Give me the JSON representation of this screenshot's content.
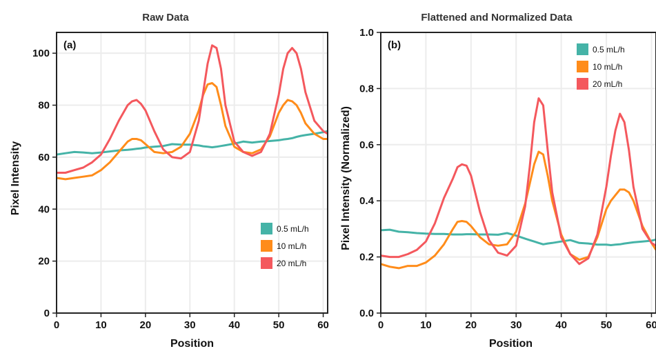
{
  "chart_data": [
    {
      "type": "line",
      "title": "Raw Data",
      "panel_label": "(a)",
      "xlabel": "Position",
      "ylabel": "Pixel Intensity",
      "xlim": [
        0,
        61
      ],
      "ylim": [
        0,
        108
      ],
      "xticks": [
        0,
        10,
        20,
        30,
        40,
        50,
        60
      ],
      "yticks": [
        0,
        20,
        40,
        60,
        80,
        100
      ],
      "ytick_labels": [
        "0",
        "20",
        "40",
        "60",
        "80",
        "100"
      ],
      "grid": true,
      "legend_position": "bottom-right",
      "x": [
        0,
        2,
        4,
        6,
        8,
        10,
        12,
        14,
        16,
        17,
        18,
        19,
        20,
        22,
        24,
        26,
        28,
        30,
        32,
        33,
        34,
        35,
        36,
        37,
        38,
        40,
        42,
        44,
        46,
        48,
        50,
        51,
        52,
        53,
        54,
        55,
        56,
        58,
        60,
        61
      ],
      "series": [
        {
          "name": "0.5 mL/h",
          "color": "#45b3a7",
          "values": [
            61,
            61.5,
            62,
            61.8,
            61.5,
            61.8,
            62.2,
            62.6,
            62.8,
            63,
            63.2,
            63.4,
            63.7,
            64,
            64.3,
            65,
            64.8,
            64.8,
            64.5,
            64.2,
            64,
            63.8,
            64,
            64.3,
            64.6,
            65.2,
            66,
            65.6,
            66,
            66.2,
            66.5,
            66.8,
            67,
            67.3,
            67.8,
            68.2,
            68.5,
            69,
            69.6,
            70
          ]
        },
        {
          "name": "10 mL/h",
          "color": "#ff8c1a",
          "values": [
            52,
            51.5,
            52,
            52.5,
            53,
            55,
            58,
            62,
            66,
            67,
            67,
            66.5,
            65,
            62,
            61.5,
            62,
            64,
            69,
            78,
            84,
            88,
            88.5,
            87,
            80,
            72,
            64,
            62,
            61.5,
            63,
            68,
            77,
            80,
            82,
            81.5,
            80,
            77,
            73,
            69,
            67,
            67
          ]
        },
        {
          "name": "20 mL/h",
          "color": "#f4585d",
          "values": [
            54,
            54,
            55,
            56,
            58,
            61,
            67,
            74,
            80,
            81.5,
            82,
            80.5,
            78,
            70,
            63,
            60,
            59.5,
            62,
            74,
            85,
            96,
            103,
            102,
            94,
            80,
            66,
            62,
            60.5,
            62,
            69,
            84,
            94,
            100,
            102,
            100,
            94,
            85,
            74,
            70,
            69
          ]
        }
      ]
    },
    {
      "type": "line",
      "title": "Flattened and Normalized Data",
      "panel_label": "(b)",
      "xlabel": "Position",
      "ylabel": "Pixel Intensity (Normalized)",
      "xlim": [
        0,
        61
      ],
      "ylim": [
        0,
        1.0
      ],
      "xticks": [
        0,
        10,
        20,
        30,
        40,
        50,
        60
      ],
      "yticks": [
        0,
        0.2,
        0.4,
        0.6,
        0.8,
        1.0
      ],
      "ytick_labels": [
        "0.0",
        "0.2",
        "0.4",
        "0.6",
        "0.8",
        "1.0"
      ],
      "grid": true,
      "legend_position": "top-right",
      "x": [
        0,
        2,
        4,
        6,
        8,
        10,
        12,
        14,
        16,
        17,
        18,
        19,
        20,
        22,
        24,
        26,
        28,
        30,
        32,
        33,
        34,
        35,
        36,
        37,
        38,
        40,
        42,
        44,
        46,
        48,
        50,
        51,
        52,
        53,
        54,
        55,
        56,
        58,
        60,
        61
      ],
      "series": [
        {
          "name": "0.5 mL/h",
          "color": "#45b3a7",
          "values": [
            0.295,
            0.297,
            0.29,
            0.288,
            0.285,
            0.283,
            0.282,
            0.282,
            0.28,
            0.28,
            0.28,
            0.281,
            0.281,
            0.28,
            0.28,
            0.279,
            0.285,
            0.276,
            0.265,
            0.26,
            0.255,
            0.25,
            0.245,
            0.248,
            0.25,
            0.255,
            0.26,
            0.25,
            0.248,
            0.244,
            0.244,
            0.242,
            0.244,
            0.245,
            0.248,
            0.25,
            0.252,
            0.255,
            0.258,
            0.262
          ]
        },
        {
          "name": "10 mL/h",
          "color": "#ff8c1a",
          "values": [
            0.175,
            0.165,
            0.16,
            0.168,
            0.168,
            0.18,
            0.205,
            0.245,
            0.3,
            0.325,
            0.328,
            0.325,
            0.31,
            0.27,
            0.245,
            0.24,
            0.245,
            0.29,
            0.39,
            0.46,
            0.53,
            0.575,
            0.565,
            0.49,
            0.4,
            0.28,
            0.21,
            0.19,
            0.2,
            0.27,
            0.37,
            0.4,
            0.42,
            0.44,
            0.44,
            0.43,
            0.4,
            0.31,
            0.25,
            0.225
          ]
        },
        {
          "name": "20 mL/h",
          "color": "#f4585d",
          "values": [
            0.205,
            0.2,
            0.2,
            0.21,
            0.225,
            0.255,
            0.32,
            0.41,
            0.48,
            0.52,
            0.53,
            0.525,
            0.49,
            0.36,
            0.26,
            0.215,
            0.205,
            0.24,
            0.38,
            0.52,
            0.68,
            0.765,
            0.74,
            0.58,
            0.43,
            0.27,
            0.21,
            0.175,
            0.195,
            0.28,
            0.45,
            0.56,
            0.65,
            0.71,
            0.68,
            0.58,
            0.45,
            0.3,
            0.25,
            0.24
          ]
        }
      ]
    }
  ]
}
